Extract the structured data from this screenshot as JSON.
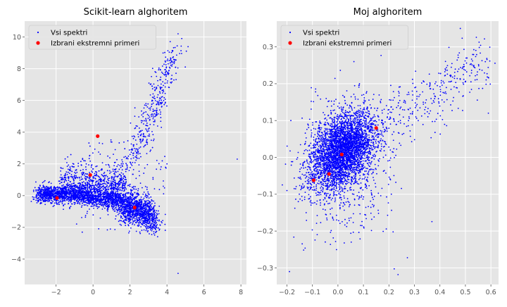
{
  "figure": {
    "background": "#ffffff",
    "axes_facecolor": "#e5e5e5",
    "grid_color": "#ffffff"
  },
  "chart_data": [
    {
      "type": "scatter",
      "title": "Scikit-learn alghoritem",
      "xlabel": "",
      "ylabel": "",
      "xlim": [
        -3.7,
        8.3
      ],
      "ylim": [
        -5.6,
        11.0
      ],
      "xticks": [
        -2,
        0,
        2,
        4,
        6,
        8
      ],
      "xtick_labels": [
        "−2",
        "0",
        "2",
        "4",
        "6",
        "8"
      ],
      "yticks": [
        -4,
        -2,
        0,
        2,
        4,
        6,
        8,
        10
      ],
      "ytick_labels": [
        "−4",
        "−2",
        "0",
        "2",
        "4",
        "6",
        "8",
        "10"
      ],
      "grid": true,
      "legend": {
        "position": "upper-left",
        "entries": [
          {
            "label": "Vsi spektri",
            "color": "#0000ff",
            "marker": "small-dot"
          },
          {
            "label": "Izbrani ekstremni primeri",
            "color": "#ff0000",
            "marker": "dot"
          }
        ]
      },
      "series": [
        {
          "name": "Vsi spektri",
          "color": "#0000ff",
          "description_of_shape": "dense curved band from (-3,0) through (0,0) to (3,-1.5), with an upward arm from (2,2) to (4.5,10) and sparse outliers",
          "clusters": [
            {
              "x": [
                -3.0,
                -1.0
              ],
              "y": [
                -0.2,
                0.4
              ],
              "density": "very-high"
            },
            {
              "x": [
                -1.0,
                1.0
              ],
              "y": [
                -0.6,
                0.2
              ],
              "density": "very-high"
            },
            {
              "x": [
                1.0,
                3.5
              ],
              "y": [
                -2.0,
                -0.5
              ],
              "density": "high"
            },
            {
              "x": [
                -1.5,
                1.5
              ],
              "y": [
                0.5,
                2.5
              ],
              "density": "medium"
            },
            {
              "x": [
                2.0,
                4.5
              ],
              "y": [
                2.0,
                9.5
              ],
              "density": "medium"
            }
          ],
          "outliers": [
            {
              "x": 4.6,
              "y": 10.2
            },
            {
              "x": 4.8,
              "y": 9.9
            },
            {
              "x": 7.8,
              "y": 2.3
            },
            {
              "x": 4.6,
              "y": -4.9
            },
            {
              "x": 4.0,
              "y": 2.0
            }
          ]
        },
        {
          "name": "Izbrani ekstremni primeri",
          "color": "#ff0000",
          "x": [
            0.25,
            -0.15,
            -1.95,
            2.25
          ],
          "y": [
            3.75,
            1.3,
            -0.15,
            -0.75
          ]
        }
      ]
    },
    {
      "type": "scatter",
      "title": "Moj alghoritem",
      "xlabel": "",
      "ylabel": "",
      "xlim": [
        -0.24,
        0.63
      ],
      "ylim": [
        -0.345,
        0.37
      ],
      "xticks": [
        -0.2,
        -0.1,
        0.0,
        0.1,
        0.2,
        0.3,
        0.4,
        0.5,
        0.6
      ],
      "xtick_labels": [
        "−0.2",
        "−0.1",
        "0.0",
        "0.1",
        "0.2",
        "0.3",
        "0.4",
        "0.5",
        "0.6"
      ],
      "yticks": [
        -0.3,
        -0.2,
        -0.1,
        0.0,
        0.1,
        0.2,
        0.3
      ],
      "ytick_labels": [
        "−0.3",
        "−0.2",
        "−0.1",
        "0.0",
        "0.1",
        "0.2",
        "0.3"
      ],
      "grid": true,
      "legend": {
        "position": "upper-left",
        "entries": [
          {
            "label": "Vsi spektri",
            "color": "#0000ff",
            "marker": "small-dot"
          },
          {
            "label": "Izbrani ekstremni primeri",
            "color": "#ff0000",
            "marker": "dot"
          }
        ]
      },
      "series": [
        {
          "name": "Vsi spektri",
          "color": "#0000ff",
          "description_of_shape": "dense ellipse centered near (0.02,0.02) spanning roughly -0.12..0.15 in x and -0.15..0.15 in y, tilted upward; sparse diagonal arm to (0.55,0.28)",
          "clusters": [
            {
              "x": [
                -0.12,
                0.15
              ],
              "y": [
                -0.15,
                0.15
              ],
              "density": "very-high"
            },
            {
              "x": [
                0.15,
                0.6
              ],
              "y": [
                0.05,
                0.3
              ],
              "density": "medium"
            },
            {
              "x": [
                -0.15,
                0.2
              ],
              "y": [
                -0.25,
                0.25
              ],
              "density": "low"
            }
          ],
          "outliers": [
            {
              "x": -0.19,
              "y": -0.31
            },
            {
              "x": 0.48,
              "y": 0.35
            },
            {
              "x": 0.59,
              "y": 0.12
            },
            {
              "x": -0.2,
              "y": -0.09
            }
          ]
        },
        {
          "name": "Izbrani ekstremni primeri",
          "color": "#ff0000",
          "x": [
            0.15,
            0.015,
            -0.035,
            -0.095
          ],
          "y": [
            0.08,
            0.008,
            -0.045,
            -0.062
          ]
        }
      ]
    }
  ]
}
